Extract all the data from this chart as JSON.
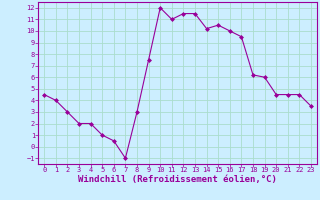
{
  "x": [
    0,
    1,
    2,
    3,
    4,
    5,
    6,
    7,
    8,
    9,
    10,
    11,
    12,
    13,
    14,
    15,
    16,
    17,
    18,
    19,
    20,
    21,
    22,
    23
  ],
  "y": [
    4.5,
    4.0,
    3.0,
    2.0,
    2.0,
    1.0,
    0.5,
    -1.0,
    3.0,
    7.5,
    12.0,
    11.0,
    11.5,
    11.5,
    10.2,
    10.5,
    10.0,
    9.5,
    6.2,
    6.0,
    4.5,
    4.5,
    4.5,
    3.5
  ],
  "line_color": "#990099",
  "marker": "D",
  "marker_size": 2,
  "bg_color": "#cceeff",
  "grid_color": "#aaddcc",
  "xlabel": "Windchill (Refroidissement éolien,°C)",
  "xlabel_color": "#990099",
  "ylim": [
    -1.5,
    12.5
  ],
  "xlim": [
    -0.5,
    23.5
  ],
  "yticks": [
    -1,
    0,
    1,
    2,
    3,
    4,
    5,
    6,
    7,
    8,
    9,
    10,
    11,
    12
  ],
  "xticks": [
    0,
    1,
    2,
    3,
    4,
    5,
    6,
    7,
    8,
    9,
    10,
    11,
    12,
    13,
    14,
    15,
    16,
    17,
    18,
    19,
    20,
    21,
    22,
    23
  ],
  "tick_color": "#990099",
  "tick_fontsize": 5.0,
  "xlabel_fontsize": 6.5,
  "spine_color": "#990099"
}
